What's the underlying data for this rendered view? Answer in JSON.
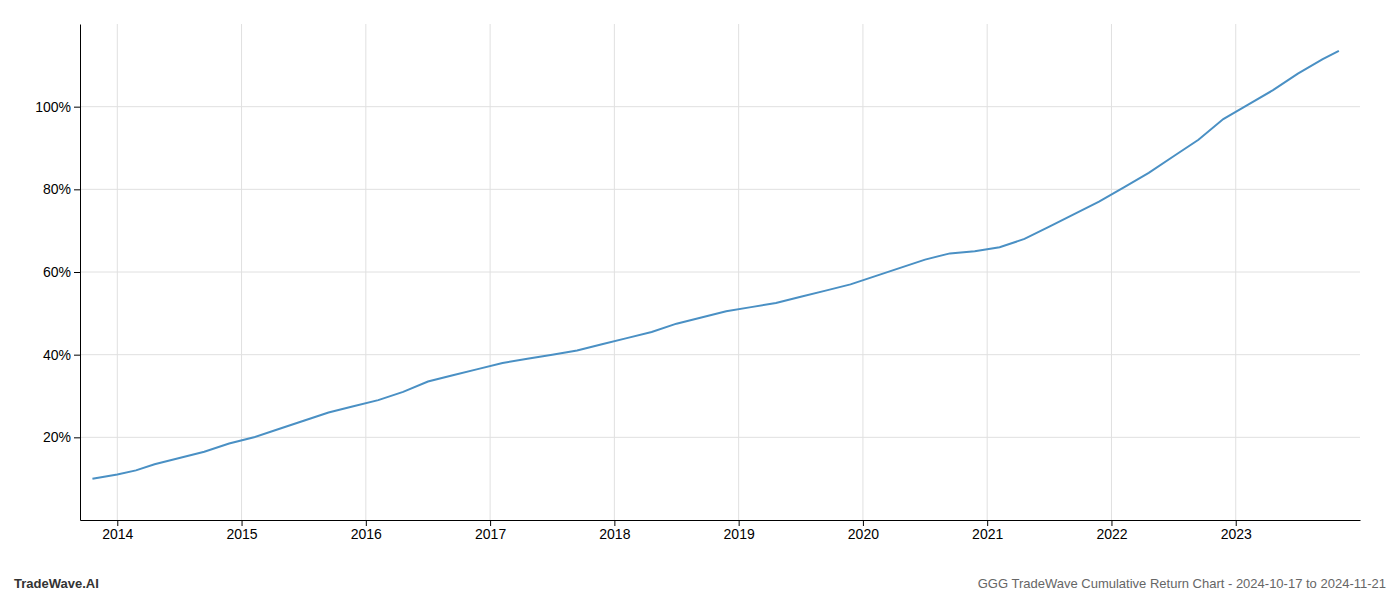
{
  "chart_data": {
    "type": "line",
    "x": [
      2013.8,
      2014.0,
      2014.15,
      2014.3,
      2014.5,
      2014.7,
      2014.9,
      2015.1,
      2015.3,
      2015.5,
      2015.7,
      2015.9,
      2016.1,
      2016.3,
      2016.5,
      2016.7,
      2016.9,
      2017.1,
      2017.3,
      2017.5,
      2017.7,
      2017.9,
      2018.1,
      2018.3,
      2018.5,
      2018.7,
      2018.9,
      2019.1,
      2019.3,
      2019.5,
      2019.7,
      2019.9,
      2020.1,
      2020.3,
      2020.5,
      2020.7,
      2020.9,
      2021.1,
      2021.3,
      2021.5,
      2021.7,
      2021.9,
      2022.1,
      2022.3,
      2022.5,
      2022.7,
      2022.9,
      2023.1,
      2023.3,
      2023.5,
      2023.7,
      2023.83
    ],
    "values": [
      10.0,
      11.0,
      12.0,
      13.5,
      15.0,
      16.5,
      18.5,
      20.0,
      22.0,
      24.0,
      26.0,
      27.5,
      29.0,
      31.0,
      33.5,
      35.0,
      36.5,
      38.0,
      39.0,
      40.0,
      41.0,
      42.5,
      44.0,
      45.5,
      47.5,
      49.0,
      50.5,
      51.5,
      52.5,
      54.0,
      55.5,
      57.0,
      59.0,
      61.0,
      63.0,
      64.5,
      65.0,
      66.0,
      68.0,
      71.0,
      74.0,
      77.0,
      80.5,
      84.0,
      88.0,
      92.0,
      97.0,
      100.5,
      104.0,
      108.0,
      111.5,
      113.5
    ],
    "color": "#4a90c4",
    "xlim": [
      2013.7,
      2024.0
    ],
    "ylim": [
      0,
      120
    ],
    "xticks": [
      2014,
      2015,
      2016,
      2017,
      2018,
      2019,
      2020,
      2021,
      2022,
      2023
    ],
    "yticks": [
      {
        "value": 20,
        "label": "20%"
      },
      {
        "value": 40,
        "label": "40%"
      },
      {
        "value": 60,
        "label": "60%"
      },
      {
        "value": 80,
        "label": "80%"
      },
      {
        "value": 100,
        "label": "100%"
      }
    ],
    "grid": true,
    "annotations": [
      "TradeWave.AI",
      "GGG TradeWave Cumulative Return Chart - 2024-10-17 to 2024-11-21"
    ]
  }
}
